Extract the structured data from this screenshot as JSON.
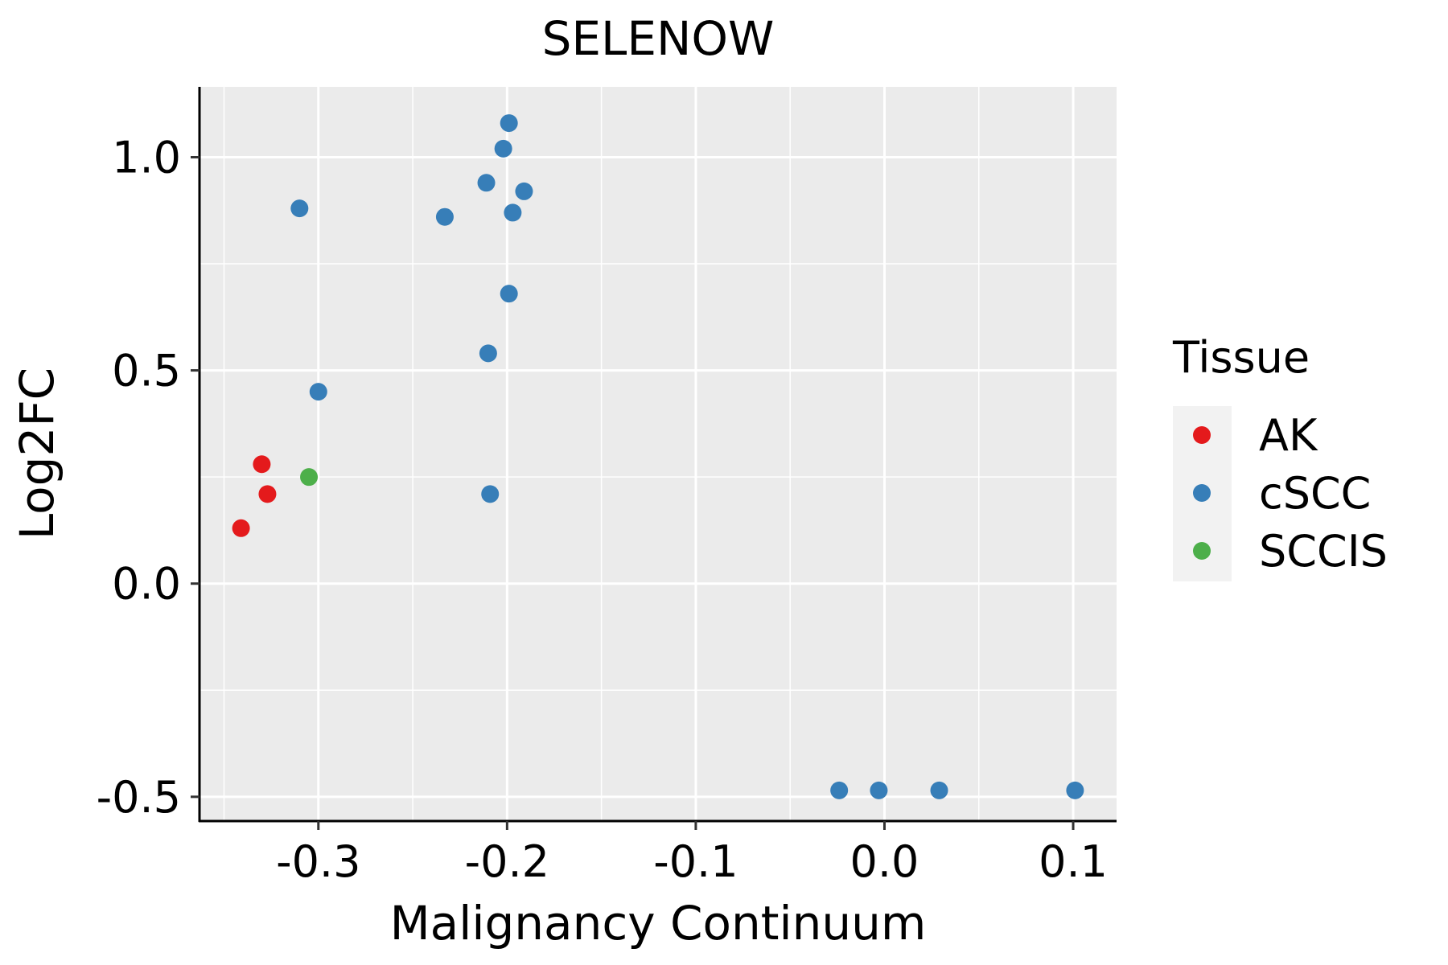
{
  "chart_data": {
    "type": "scatter",
    "title": "SELENOW",
    "xlabel": "Malignancy Continuum",
    "ylabel": "Log2FC",
    "xlim": [
      -0.363,
      0.123
    ],
    "ylim": [
      -0.555,
      1.165
    ],
    "x_ticks": [
      -0.3,
      -0.2,
      -0.1,
      0.0,
      0.1
    ],
    "x_tick_labels": [
      "-0.3",
      "-0.2",
      "-0.1",
      "0.0",
      "0.1"
    ],
    "y_ticks": [
      -0.5,
      0.0,
      0.5,
      1.0
    ],
    "y_tick_labels": [
      "-0.5",
      "0.0",
      "0.5",
      "1.0"
    ],
    "grid": true,
    "legend": {
      "title": "Tissue",
      "position": "right",
      "entries": [
        {
          "name": "AK",
          "color": "#E41A1C"
        },
        {
          "name": "cSCC",
          "color": "#377EB8"
        },
        {
          "name": "SCCIS",
          "color": "#4DAF4A"
        }
      ]
    },
    "series": [
      {
        "name": "AK",
        "color": "#E41A1C",
        "points": [
          {
            "x": -0.33,
            "y": 0.28
          },
          {
            "x": -0.327,
            "y": 0.21
          },
          {
            "x": -0.341,
            "y": 0.13
          }
        ]
      },
      {
        "name": "cSCC",
        "color": "#377EB8",
        "points": [
          {
            "x": -0.31,
            "y": 0.88
          },
          {
            "x": -0.3,
            "y": 0.45
          },
          {
            "x": -0.233,
            "y": 0.86
          },
          {
            "x": -0.211,
            "y": 0.94
          },
          {
            "x": -0.21,
            "y": 0.54
          },
          {
            "x": -0.209,
            "y": 0.21
          },
          {
            "x": -0.202,
            "y": 1.02
          },
          {
            "x": -0.199,
            "y": 1.08
          },
          {
            "x": -0.199,
            "y": 0.68
          },
          {
            "x": -0.197,
            "y": 0.87
          },
          {
            "x": -0.191,
            "y": 0.92
          },
          {
            "x": -0.024,
            "y": -0.485
          },
          {
            "x": -0.003,
            "y": -0.485
          },
          {
            "x": 0.029,
            "y": -0.485
          },
          {
            "x": 0.101,
            "y": -0.485
          }
        ]
      },
      {
        "name": "SCCIS",
        "color": "#4DAF4A",
        "points": [
          {
            "x": -0.305,
            "y": 0.25
          }
        ]
      }
    ]
  }
}
